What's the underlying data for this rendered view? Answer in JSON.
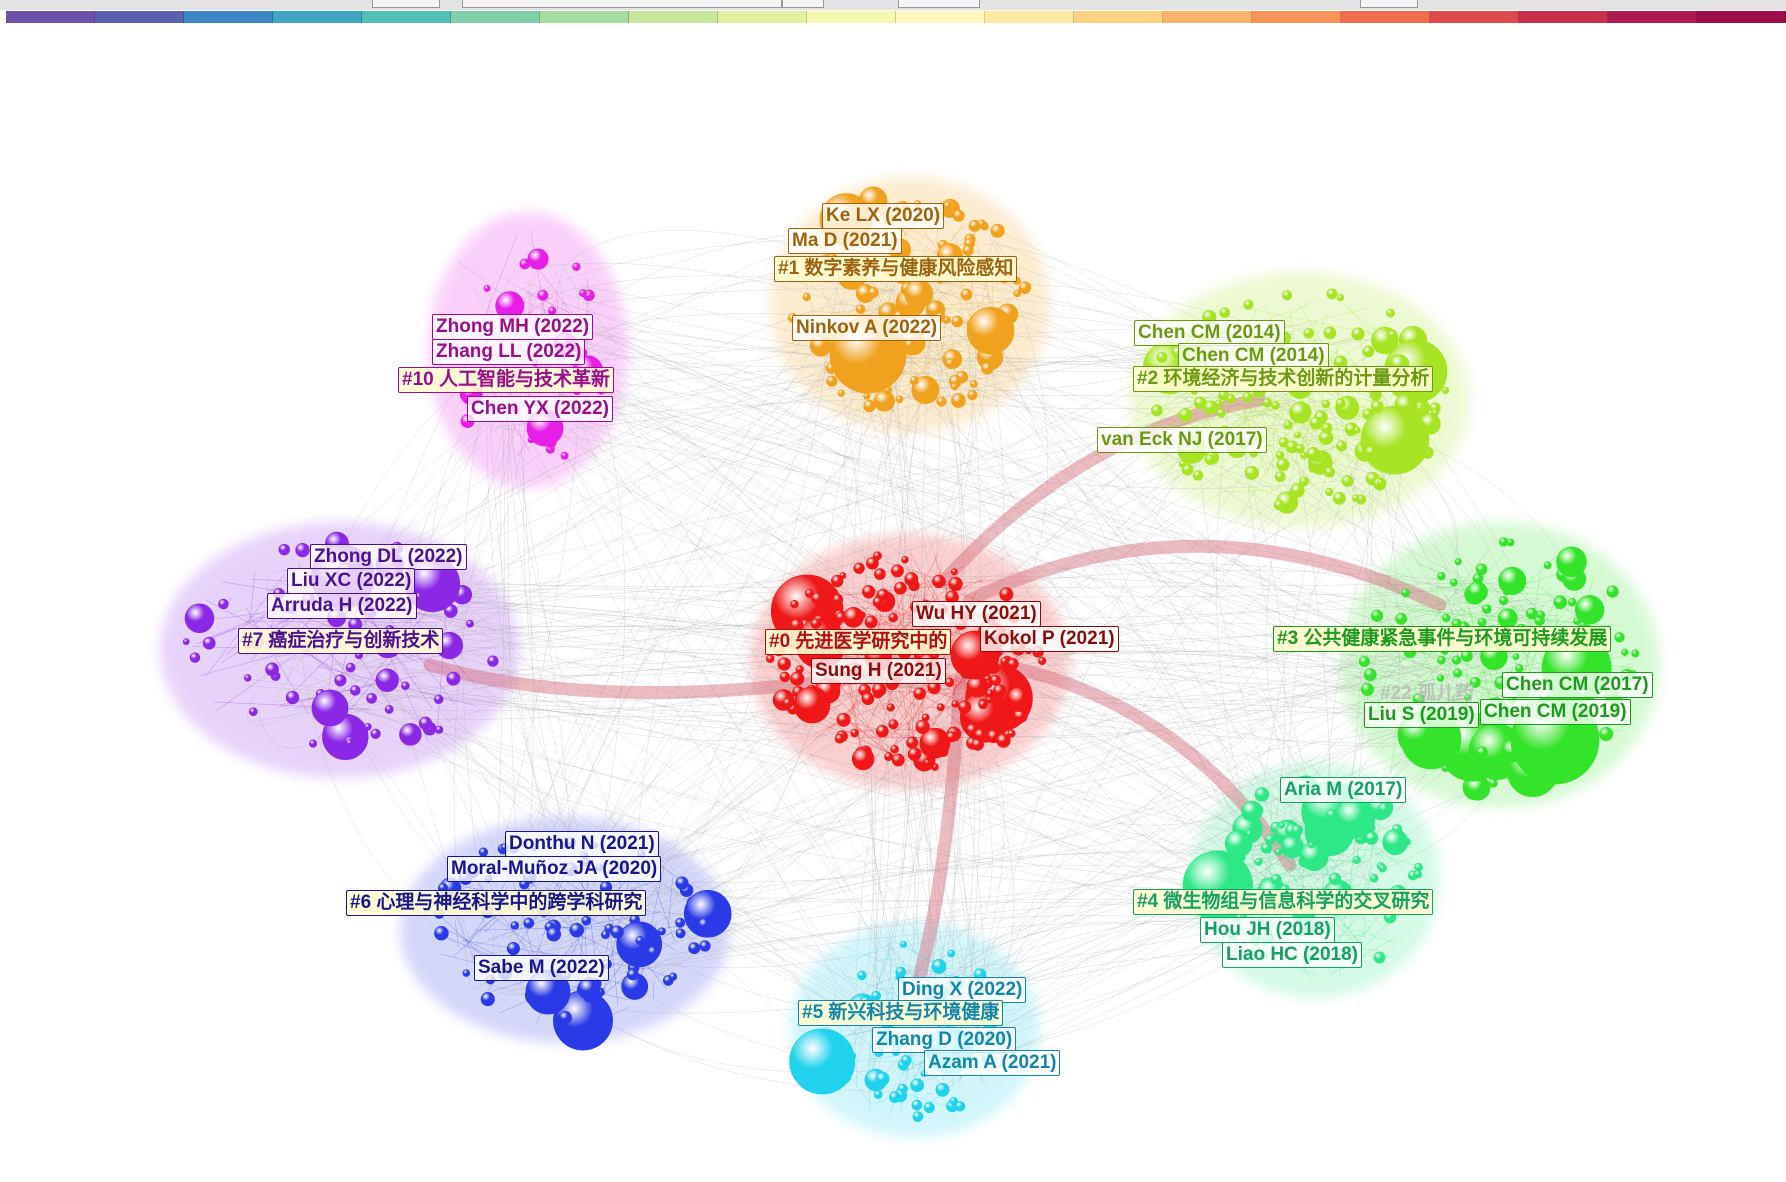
{
  "timeline": {
    "colors": [
      "#6c52a8",
      "#5a62b0",
      "#3b86c4",
      "#42a5c4",
      "#54bfb6",
      "#7fd0a6",
      "#a6dca0",
      "#c7e79e",
      "#e3f19e",
      "#f4f8b0",
      "#fff8be",
      "#fee9a0",
      "#fdd283",
      "#fcb36b",
      "#f8935a",
      "#ee6d4c",
      "#dc4a4c",
      "#c8304e",
      "#ad1a4f",
      "#9b0e4a"
    ]
  },
  "colors": {
    "c0": "#ef1818",
    "c1": "#f0a21e",
    "c2": "#a6e424",
    "c3": "#34e42a",
    "c4": "#2ee888",
    "c5": "#20d2ec",
    "c6": "#2a3ae6",
    "c7": "#8a28e6",
    "c10": "#e61ee6"
  },
  "clusters": {
    "c0": {
      "label": "#0 先进医学研究中的",
      "refs": [
        "Wu HY (2021)",
        "Kokol P (2021)",
        "Sung H (2021)"
      ]
    },
    "c1": {
      "label": "#1 数字素养与健康风险感知",
      "refs": [
        "Ke LX (2020)",
        "Ma D (2021)",
        "Ninkov A (2022)"
      ]
    },
    "c2": {
      "label": "#2 环境经济与技术创新的计量分析",
      "refs": [
        "Chen CM (2014)",
        "Chen CM (2014)",
        "van Eck NJ (2017)"
      ]
    },
    "c3": {
      "label": "#3 公共健康紧急事件与环境可持续发展",
      "refs": [
        "Chen CM (2017)",
        "Chen CM (2019)",
        "Liu S (2019)"
      ],
      "partial": "#22 孤儿药"
    },
    "c4": {
      "label": "#4 微生物组与信息科学的交叉研究",
      "refs": [
        "Aria M (2017)",
        "Hou JH (2018)",
        "Liao HC (2018)"
      ]
    },
    "c5": {
      "label": "#5 新兴科技与环境健康",
      "refs": [
        "Ding X (2022)",
        "Zhang D (2020)",
        "Azam A (2021)"
      ]
    },
    "c6": {
      "label": "#6 心理与神经科学中的跨学科研究",
      "refs": [
        "Donthu N (2021)",
        "Moral-Muñoz JA (2020)",
        "Sabe M (2022)"
      ]
    },
    "c7": {
      "label": "#7 癌症治疗与创新技术",
      "refs": [
        "Zhong DL (2022)",
        "Liu XC (2022)",
        "Arruda H (2022)"
      ]
    },
    "c10": {
      "label": "#10 人工智能与技术革新",
      "refs": [
        "Zhong MH (2022)",
        "Zhang LL (2022)",
        "Chen YX (2022)"
      ]
    }
  }
}
